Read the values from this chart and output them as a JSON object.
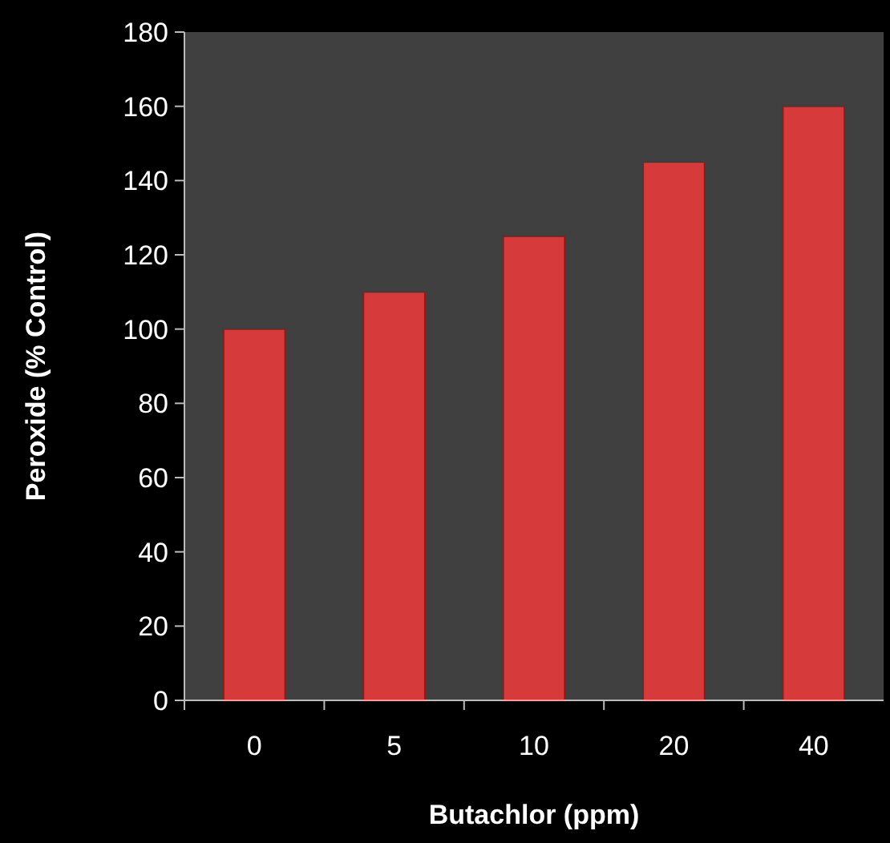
{
  "chart_data": {
    "type": "bar",
    "xlabel": "Butachlor (ppm)",
    "ylabel": "Peroxide (% Control)",
    "categories": [
      "0",
      "5",
      "10",
      "20",
      "40"
    ],
    "values": [
      100,
      110,
      125,
      145,
      160
    ],
    "color": "#d63a3a",
    "ylim": [
      0,
      180
    ],
    "yticks": [
      0,
      20,
      40,
      60,
      80,
      100,
      120,
      140,
      160,
      180
    ],
    "grid": false
  }
}
